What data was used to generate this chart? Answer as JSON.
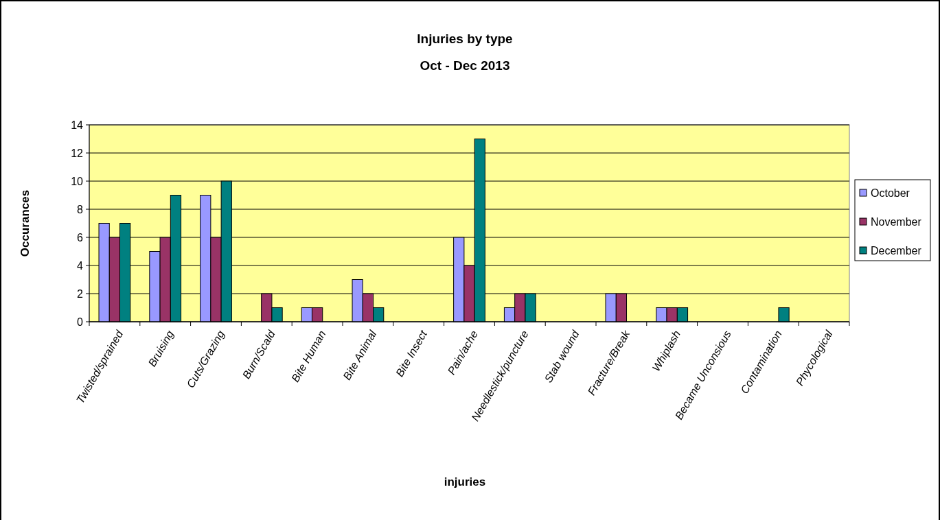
{
  "chart_data": {
    "type": "bar",
    "title": "Injuries by type",
    "subtitle": "Oct - Dec 2013",
    "xlabel": "injuries",
    "ylabel": "Occurances",
    "categories": [
      "Twisted/sprained",
      "Bruising",
      "Cuts/Grazing",
      "Burn/Scald",
      "Bite Human",
      "Bite Animal",
      "Bite Insect",
      "Pain/ache",
      "Needlestick/puncture",
      "Stab wound",
      "Fracture/Break",
      "Whiplash",
      "Became Unconsious",
      "Contamination",
      "Phycological"
    ],
    "series": [
      {
        "name": "October",
        "color": "#9999ff",
        "values": [
          7,
          5,
          9,
          0,
          1,
          3,
          0,
          6,
          1,
          0,
          2,
          1,
          0,
          0,
          0
        ]
      },
      {
        "name": "November",
        "color": "#993366",
        "values": [
          6,
          6,
          6,
          2,
          1,
          2,
          0,
          4,
          2,
          0,
          2,
          1,
          0,
          0,
          0
        ]
      },
      {
        "name": "December",
        "color": "#008080",
        "values": [
          7,
          9,
          10,
          1,
          0,
          1,
          0,
          13,
          2,
          0,
          0,
          1,
          0,
          1,
          0
        ]
      }
    ],
    "ylim": [
      0,
      14
    ],
    "yticks": [
      0,
      2,
      4,
      6,
      8,
      10,
      12,
      14
    ],
    "grid": "y",
    "legend": "right"
  }
}
